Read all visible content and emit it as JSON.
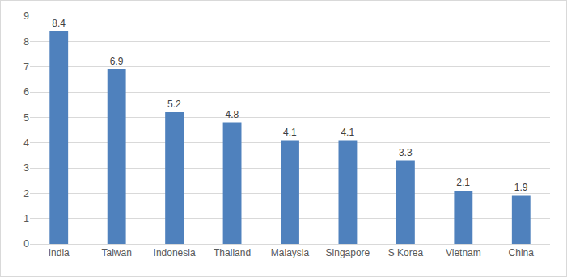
{
  "chart_data": {
    "type": "bar",
    "categories": [
      "India",
      "Taiwan",
      "Indonesia",
      "Thailand",
      "Malaysia",
      "Singapore",
      "S Korea",
      "Vietnam",
      "China"
    ],
    "values": [
      8.4,
      6.9,
      5.2,
      4.8,
      4.1,
      4.1,
      3.3,
      2.1,
      1.9
    ],
    "color": "#4f81bd",
    "ylim": [
      0,
      9
    ],
    "yticks": [
      0,
      1,
      2,
      3,
      4,
      5,
      6,
      7,
      8,
      9
    ],
    "grid": true,
    "data_labels": true
  }
}
